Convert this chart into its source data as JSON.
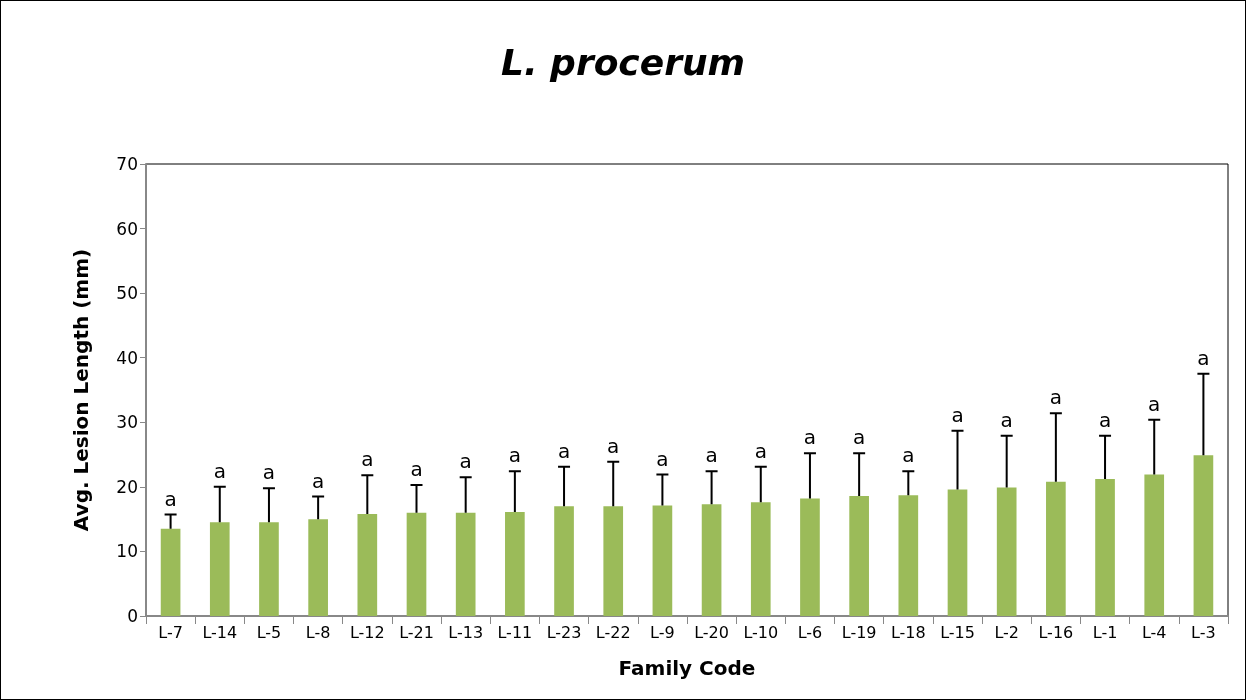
{
  "chart_data": {
    "type": "bar",
    "title": "L. procerum",
    "xlabel": "Family Code",
    "ylabel": "Avg. Lesion Length (mm)",
    "categories": [
      "L-7",
      "L-14",
      "L-5",
      "L-8",
      "L-12",
      "L-21",
      "L-13",
      "L-11",
      "L-23",
      "L-22",
      "L-9",
      "L-20",
      "L-10",
      "L-6",
      "L-19",
      "L-18",
      "L-15",
      "L-2",
      "L-16",
      "L-1",
      "L-4",
      "L-3"
    ],
    "values": [
      13.5,
      14.5,
      14.5,
      15,
      15.8,
      16,
      16,
      16.1,
      17,
      17,
      17.1,
      17.3,
      17.6,
      18.2,
      18.6,
      18.7,
      19.6,
      19.9,
      20.8,
      21.2,
      21.9,
      24.9
    ],
    "errors": [
      [
        13.5,
        15.7
      ],
      [
        14.5,
        20
      ],
      [
        14.5,
        19.8
      ],
      [
        15,
        18.5
      ],
      [
        15.8,
        21.8
      ],
      [
        16,
        20.3
      ],
      [
        16,
        21.5
      ],
      [
        16.1,
        22.4
      ],
      [
        17,
        23.1
      ],
      [
        17,
        23.9
      ],
      [
        17.1,
        21.9
      ],
      [
        17.3,
        22.4
      ],
      [
        17.6,
        23.1
      ],
      [
        18.2,
        25.2
      ],
      [
        18.6,
        25.2
      ],
      [
        18.7,
        22.4
      ],
      [
        19.6,
        28.7
      ],
      [
        19.9,
        27.9
      ],
      [
        20.8,
        31.4
      ],
      [
        21.2,
        27.9
      ],
      [
        21.9,
        30.4
      ],
      [
        24.9,
        37.5
      ]
    ],
    "color": "#9bbb59",
    "ylim": [
      0,
      70
    ],
    "yticks": [
      0,
      10,
      20,
      30,
      40,
      50,
      60,
      70
    ],
    "grid": false,
    "annotations": [
      {
        "text": "a",
        "x": "L-7",
        "y": 15.7
      },
      {
        "text": "a",
        "x": "L-14",
        "y": 20
      },
      {
        "text": "a",
        "x": "L-5",
        "y": 19.8
      },
      {
        "text": "a",
        "x": "L-8",
        "y": 18.5
      },
      {
        "text": "a",
        "x": "L-12",
        "y": 21.8
      },
      {
        "text": "a",
        "x": "L-21",
        "y": 20.3
      },
      {
        "text": "a",
        "x": "L-13",
        "y": 21.5
      },
      {
        "text": "a",
        "x": "L-11",
        "y": 22.4
      },
      {
        "text": "a",
        "x": "L-23",
        "y": 23.1
      },
      {
        "text": "a",
        "x": "L-22",
        "y": 23.9
      },
      {
        "text": "a",
        "x": "L-9",
        "y": 21.9
      },
      {
        "text": "a",
        "x": "L-20",
        "y": 22.4
      },
      {
        "text": "a",
        "x": "L-10",
        "y": 23.1
      },
      {
        "text": "a",
        "x": "L-6",
        "y": 25.2
      },
      {
        "text": "a",
        "x": "L-19",
        "y": 25.2
      },
      {
        "text": "a",
        "x": "L-18",
        "y": 22.4
      },
      {
        "text": "a",
        "x": "L-15",
        "y": 28.7
      },
      {
        "text": "a",
        "x": "L-2",
        "y": 27.9
      },
      {
        "text": "a",
        "x": "L-16",
        "y": 31.4
      },
      {
        "text": "a",
        "x": "L-1",
        "y": 27.9
      },
      {
        "text": "a",
        "x": "L-4",
        "y": 30.4
      },
      {
        "text": "a",
        "x": "L-3",
        "y": 37.5
      }
    ]
  }
}
